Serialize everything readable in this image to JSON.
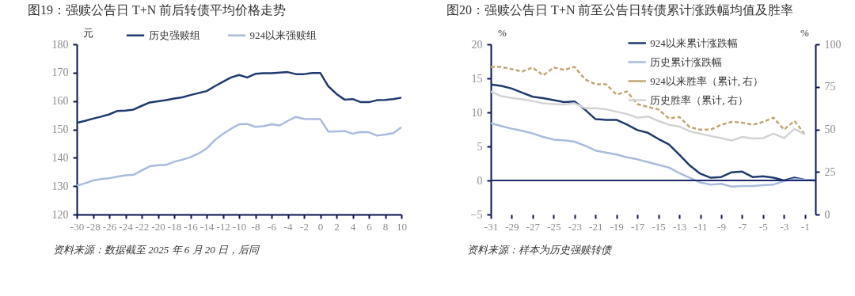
{
  "chart_data": [
    {
      "type": "line",
      "title": "图19：强赎公告日 T+N 前后转债平均价格走势",
      "ylabel": "元",
      "legend": "top",
      "grid": false,
      "line_style": "solid",
      "marker": "none",
      "x": [
        -30,
        -29,
        -28,
        -27,
        -26,
        -25,
        -24,
        -23,
        -22,
        -21,
        -20,
        -19,
        -18,
        -17,
        -16,
        -15,
        -14,
        -13,
        -12,
        -11,
        -10,
        -9,
        -8,
        -7,
        -6,
        -5,
        -4,
        -3,
        -2,
        -1,
        0,
        1,
        2,
        3,
        4,
        5,
        6,
        7,
        8,
        9,
        10
      ],
      "xlim": [
        -30,
        10
      ],
      "xticks": [
        -30,
        -28,
        -26,
        -24,
        -22,
        -20,
        -18,
        -16,
        -14,
        -12,
        -10,
        -8,
        -6,
        -4,
        -2,
        0,
        2,
        4,
        6,
        8,
        10
      ],
      "ylim": [
        120,
        180
      ],
      "yticks": [
        120,
        130,
        140,
        150,
        160,
        170,
        180
      ],
      "series": [
        {
          "name": "历史强赎组",
          "color": "#1f3a6e",
          "values": [
            152.3,
            153,
            153.8,
            154.5,
            155.3,
            156.5,
            156.6,
            157,
            158.3,
            159.5,
            159.9,
            160.3,
            160.9,
            161.3,
            162.1,
            162.8,
            163.5,
            165.2,
            166.8,
            168.3,
            169.2,
            168.3,
            169.6,
            169.8,
            169.8,
            170,
            170.2,
            169.5,
            169.5,
            169.9,
            169.9,
            165.2,
            162.5,
            160.5,
            160.7,
            159.6,
            159.6,
            160.3,
            160.4,
            160.7,
            161.2
          ]
        },
        {
          "name": "924以来强赎组",
          "color": "#a9bbdc",
          "values": [
            130.2,
            131,
            132,
            132.5,
            132.8,
            133.3,
            133.8,
            134,
            135.5,
            137,
            137.4,
            137.5,
            138.6,
            139.3,
            140.2,
            141.5,
            143.3,
            146.2,
            148.4,
            150.2,
            151.8,
            151.9,
            150.9,
            151.1,
            151.8,
            151.4,
            153,
            154.4,
            153.7,
            153.6,
            153.6,
            149.2,
            149.3,
            149.4,
            148.5,
            149.1,
            149,
            147.8,
            148.2,
            148.7,
            150.8
          ]
        }
      ],
      "annotations": [
        "资料来源：数据截至 2025 年 6 月 20 日，后同"
      ]
    },
    {
      "type": "line",
      "title": "图20：强赎公告日 T+N 前至公告日转债累计涨跌幅均值及胜率",
      "ylabel": "%",
      "y2label": "%",
      "legend": "top right",
      "grid": false,
      "marker": "none",
      "x": [
        -31,
        -30,
        -29,
        -28,
        -27,
        -26,
        -25,
        -24,
        -23,
        -22,
        -21,
        -20,
        -19,
        -18,
        -17,
        -16,
        -15,
        -14,
        -13,
        -12,
        -11,
        -10,
        -9,
        -8,
        -7,
        -6,
        -5,
        -4,
        -3,
        -2,
        -1,
        0
      ],
      "xlim": [
        -31,
        0
      ],
      "xticks": [
        -31,
        -29,
        -27,
        -25,
        -23,
        -21,
        -19,
        -17,
        -15,
        -13,
        -11,
        -9,
        -7,
        -5,
        -3,
        -1
      ],
      "ylim": [
        -5,
        20
      ],
      "yticks": [
        -5,
        0,
        5,
        10,
        15,
        20
      ],
      "y2lim": [
        0,
        100
      ],
      "y2ticks": [
        0,
        25,
        50,
        75,
        100
      ],
      "ref_lines": [
        {
          "axis": "y",
          "value": 0,
          "color": "#1f2a6e"
        }
      ],
      "series": [
        {
          "name": "924以来累计涨跌幅",
          "color": "#1f3a6e",
          "line_style": "solid",
          "values": [
            14.1,
            13.9,
            13.5,
            12.9,
            12.3,
            12.1,
            11.8,
            11.5,
            11.6,
            10.4,
            9.0,
            8.9,
            8.9,
            8.2,
            7.4,
            7.0,
            6.1,
            5.3,
            3.8,
            2.2,
            1.0,
            0.4,
            0.5,
            1.2,
            1.3,
            0.5,
            0.6,
            0.4,
            0.0,
            0.4,
            0.1,
            0.0
          ]
        },
        {
          "name": "历史累计涨跌幅",
          "color": "#a9bbdc",
          "line_style": "solid",
          "values": [
            8.4,
            8.0,
            7.6,
            7.3,
            6.9,
            6.4,
            6.0,
            5.9,
            5.7,
            5.1,
            4.4,
            4.1,
            3.8,
            3.4,
            3.1,
            2.7,
            2.3,
            1.9,
            1.1,
            0.4,
            -0.3,
            -0.6,
            -0.5,
            -0.9,
            -0.8,
            -0.8,
            -0.7,
            -0.6,
            -0.1,
            0.2,
            0.1,
            0.0
          ]
        },
        {
          "name": "924以来胜率（累计, 右）",
          "color": "#bfa772",
          "line_style": "dashed",
          "axis": "y2",
          "values": [
            86.7,
            86.7,
            85.4,
            84,
            86.4,
            81.7,
            86.4,
            85,
            86.7,
            79.4,
            76.5,
            76.5,
            70.5,
            72.3,
            64.9,
            63.2,
            61.8,
            56.5,
            57.3,
            51.3,
            49.9,
            49.9,
            52.7,
            54.4,
            54,
            52.7,
            54.4,
            56.9,
            49.9,
            55,
            47,
            null
          ]
        },
        {
          "name": "历史胜率（累计, 右）",
          "color": "#d3d3d3",
          "line_style": "solid",
          "axis": "y2",
          "values": [
            72.3,
            69.5,
            68.5,
            67.7,
            66.7,
            65.3,
            64.9,
            64.6,
            65.3,
            62.5,
            62.5,
            61.8,
            60.4,
            59,
            56.9,
            57.6,
            55,
            52.7,
            51.7,
            48.9,
            47.5,
            46.1,
            44.9,
            43.5,
            45.6,
            44.7,
            44.9,
            47.5,
            44.9,
            50.3,
            47,
            null
          ]
        }
      ],
      "annotations": [
        "资料来源：样本为历史强赎转债"
      ]
    }
  ]
}
